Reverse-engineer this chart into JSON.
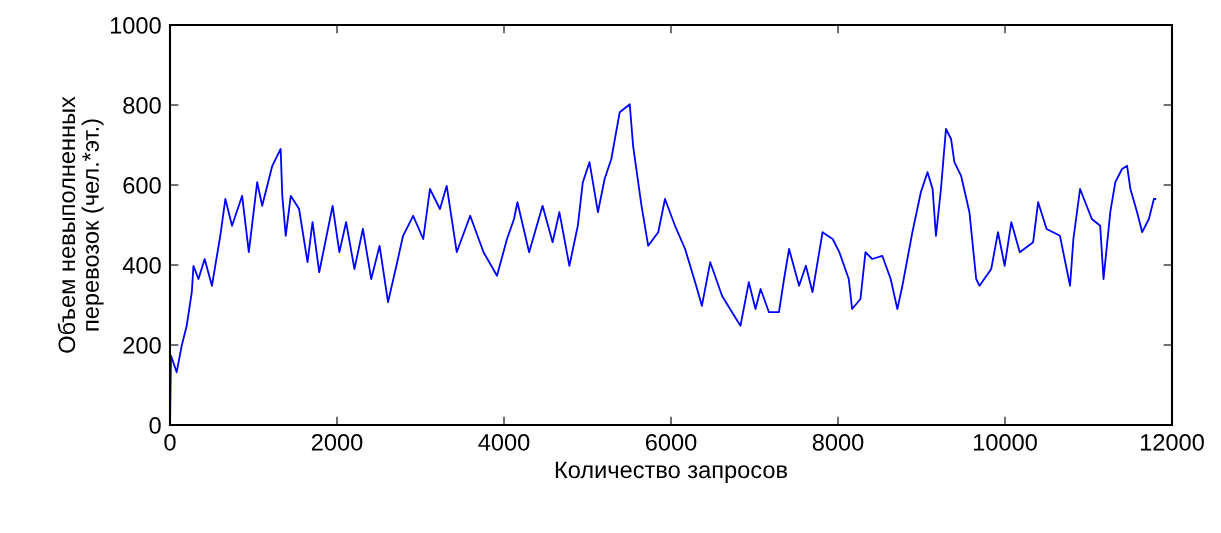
{
  "chart_data": {
    "type": "line",
    "xlabel": "Количество запросов",
    "ylabel": "Объем невыполненных\nперевозок (чел.*эт.)",
    "xlim": [
      0,
      12000
    ],
    "xticks": [
      0,
      2000,
      4000,
      6000,
      8000,
      10000,
      12000
    ],
    "ylim": [
      0,
      1000
    ],
    "yticks": [
      0,
      200,
      400,
      600,
      800,
      1000
    ],
    "grid": false,
    "legend": false,
    "series": [
      {
        "color": "#0000ff",
        "x": [
          0,
          12,
          80,
          140,
          200,
          261,
          281,
          341,
          415,
          502,
          602,
          663,
          743,
          864,
          944,
          1044,
          1104,
          1225,
          1325,
          1345,
          1386,
          1446,
          1546,
          1647,
          1707,
          1787,
          1948,
          2028,
          2109,
          2209,
          2310,
          2410,
          2510,
          2611,
          2711,
          2791,
          2912,
          3033,
          3113,
          3233,
          3314,
          3434,
          3595,
          3755,
          3916,
          4036,
          4120,
          4161,
          4301,
          4462,
          4582,
          4663,
          4783,
          4884,
          4944,
          5024,
          5125,
          5205,
          5285,
          5386,
          5506,
          5546,
          5647,
          5727,
          5847,
          5928,
          6048,
          6169,
          6289,
          6370,
          6470,
          6611,
          6731,
          6832,
          6932,
          7012,
          7073,
          7173,
          7293,
          7354,
          7414,
          7534,
          7615,
          7695,
          7815,
          7936,
          8016,
          8129,
          8169,
          8269,
          8329,
          8410,
          8530,
          8631,
          8711,
          8771,
          8831,
          8891,
          8992,
          9072,
          9133,
          9173,
          9233,
          9293,
          9354,
          9394,
          9474,
          9574,
          9655,
          9695,
          9835,
          9916,
          9996,
          10076,
          10177,
          10337,
          10397,
          10498,
          10658,
          10779,
          10819,
          10899,
          11040,
          11140,
          11180,
          11261,
          11321,
          11402,
          11462,
          11502,
          11582,
          11643,
          11723,
          11783,
          11800
        ],
        "values": [
          0,
          173,
          132,
          198,
          248,
          332,
          398,
          365,
          415,
          348,
          473,
          565,
          498,
          573,
          432,
          607,
          548,
          648,
          690,
          573,
          473,
          573,
          540,
          407,
          507,
          382,
          548,
          432,
          507,
          390,
          490,
          365,
          448,
          307,
          398,
          473,
          523,
          465,
          590,
          540,
          598,
          432,
          523,
          432,
          373,
          465,
          515,
          557,
          432,
          548,
          457,
          532,
          398,
          498,
          607,
          657,
          532,
          615,
          665,
          782,
          802,
          698,
          548,
          448,
          482,
          565,
          498,
          440,
          357,
          298,
          407,
          323,
          282,
          248,
          357,
          290,
          340,
          282,
          282,
          365,
          440,
          348,
          398,
          332,
          482,
          465,
          432,
          365,
          290,
          315,
          432,
          415,
          423,
          365,
          290,
          348,
          415,
          482,
          582,
          632,
          590,
          473,
          590,
          740,
          715,
          657,
          623,
          532,
          365,
          348,
          390,
          482,
          398,
          507,
          432,
          457,
          557,
          490,
          473,
          348,
          465,
          590,
          515,
          498,
          365,
          532,
          607,
          640,
          648,
          590,
          532,
          482,
          515,
          565,
          565
        ]
      }
    ]
  }
}
